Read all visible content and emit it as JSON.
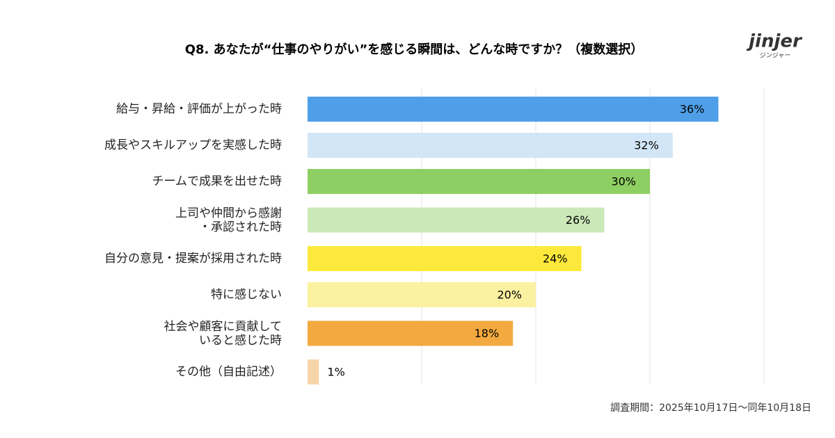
{
  "brand": {
    "name": "jinjer",
    "kana": "ジンジャー"
  },
  "chart_data": {
    "type": "bar",
    "orientation": "horizontal",
    "title": "Q8. あなたが“仕事のやりがい”を感じる瞬間は、どんな時ですか？（複数選択）",
    "categories": [
      "給与・昇給・評価が上がった時",
      "成長やスキルアップを実感した時",
      "チームで成果を出せた時",
      "上司や仲間から感謝\n・承認された時",
      "自分の意見・提案が採用された時",
      "特に感じない",
      "社会や顧客に貢献して\nいると感じた時",
      "その他（自由記述）"
    ],
    "values": [
      36,
      32,
      30,
      26,
      24,
      20,
      18,
      1
    ],
    "value_labels": [
      "36%",
      "32%",
      "30%",
      "26%",
      "24%",
      "20%",
      "18%",
      "1%"
    ],
    "colors": [
      "#4f9fe8",
      "#d3e6f7",
      "#8ecf63",
      "#cbe9b8",
      "#fde93c",
      "#fcf1a0",
      "#f2a93f",
      "#f7d4a9"
    ],
    "xlim": [
      0,
      40
    ],
    "xticks": [
      0,
      10,
      20,
      30,
      40
    ],
    "grid": true,
    "note": "調査期間：2025年10月17日〜同年10月18日"
  }
}
